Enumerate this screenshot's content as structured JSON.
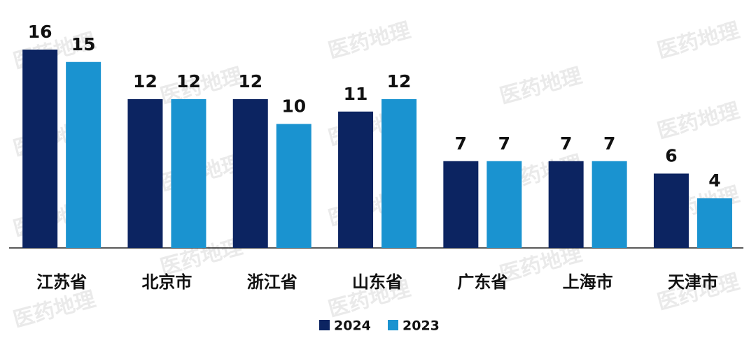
{
  "watermark": "医药地理",
  "chart_data": {
    "type": "bar",
    "categories": [
      "江苏省",
      "北京市",
      "浙江省",
      "山东省",
      "广东省",
      "上海市",
      "天津市"
    ],
    "series": [
      {
        "name": "2024",
        "color": "#0c2461",
        "values": [
          16,
          12,
          12,
          11,
          7,
          7,
          6
        ]
      },
      {
        "name": "2023",
        "color": "#1a93d0",
        "values": [
          15,
          12,
          10,
          12,
          7,
          7,
          4
        ]
      }
    ]
  }
}
